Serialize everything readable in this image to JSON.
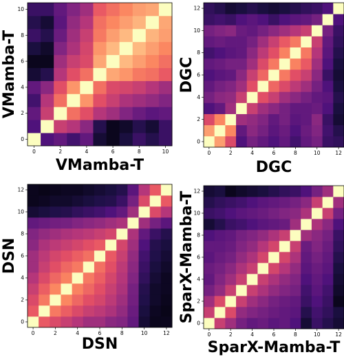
{
  "colormap": "magma",
  "chart_data": [
    {
      "type": "heatmap",
      "xlabel": "VMamba-T",
      "ylabel": "VMamba-T",
      "size": 11,
      "xticks": [
        "0",
        "2",
        "4",
        "6",
        "8",
        "10"
      ],
      "yticks": [
        "0",
        "2",
        "4",
        "6",
        "8",
        "10"
      ],
      "values": [
        [
          1.0,
          0.25,
          0.3,
          0.22,
          0.3,
          0.1,
          0.05,
          0.12,
          0.2,
          0.15,
          0.2
        ],
        [
          0.25,
          1.0,
          0.55,
          0.5,
          0.4,
          0.15,
          0.05,
          0.08,
          0.15,
          0.1,
          0.2
        ],
        [
          0.3,
          0.55,
          1.0,
          0.7,
          0.62,
          0.5,
          0.45,
          0.38,
          0.32,
          0.28,
          0.3
        ],
        [
          0.22,
          0.5,
          0.7,
          1.0,
          0.78,
          0.62,
          0.55,
          0.48,
          0.45,
          0.42,
          0.38
        ],
        [
          0.3,
          0.4,
          0.62,
          0.78,
          1.0,
          0.7,
          0.6,
          0.58,
          0.55,
          0.5,
          0.45
        ],
        [
          0.1,
          0.15,
          0.5,
          0.62,
          0.7,
          1.0,
          0.82,
          0.78,
          0.72,
          0.7,
          0.65
        ],
        [
          0.05,
          0.05,
          0.45,
          0.55,
          0.6,
          0.82,
          1.0,
          0.86,
          0.8,
          0.75,
          0.7
        ],
        [
          0.12,
          0.08,
          0.38,
          0.48,
          0.58,
          0.78,
          0.86,
          1.0,
          0.86,
          0.8,
          0.75
        ],
        [
          0.2,
          0.15,
          0.32,
          0.45,
          0.55,
          0.72,
          0.8,
          0.86,
          1.0,
          0.85,
          0.8
        ],
        [
          0.15,
          0.1,
          0.28,
          0.42,
          0.5,
          0.7,
          0.75,
          0.8,
          0.85,
          1.0,
          0.82
        ],
        [
          0.2,
          0.2,
          0.3,
          0.38,
          0.45,
          0.65,
          0.7,
          0.75,
          0.8,
          0.82,
          1.0
        ]
      ]
    },
    {
      "type": "heatmap",
      "xlabel": "DGC",
      "ylabel": "DGC",
      "size": 13,
      "xticks": [
        "0",
        "2",
        "4",
        "6",
        "8",
        "10",
        "12"
      ],
      "yticks": [
        "0",
        "2",
        "4",
        "6",
        "8",
        "10",
        "12"
      ],
      "values": [
        [
          1.0,
          0.8,
          0.6,
          0.25,
          0.35,
          0.3,
          0.25,
          0.3,
          0.22,
          0.3,
          0.35,
          0.2,
          0.18
        ],
        [
          0.8,
          1.0,
          0.75,
          0.3,
          0.4,
          0.35,
          0.28,
          0.32,
          0.25,
          0.32,
          0.38,
          0.22,
          0.15
        ],
        [
          0.6,
          0.75,
          1.0,
          0.45,
          0.42,
          0.38,
          0.3,
          0.35,
          0.28,
          0.3,
          0.4,
          0.2,
          0.1
        ],
        [
          0.25,
          0.3,
          0.45,
          1.0,
          0.55,
          0.45,
          0.4,
          0.35,
          0.3,
          0.3,
          0.32,
          0.25,
          0.12
        ],
        [
          0.35,
          0.4,
          0.42,
          0.55,
          1.0,
          0.62,
          0.55,
          0.45,
          0.4,
          0.35,
          0.3,
          0.28,
          0.15
        ],
        [
          0.3,
          0.35,
          0.38,
          0.45,
          0.62,
          1.0,
          0.68,
          0.6,
          0.52,
          0.45,
          0.35,
          0.25,
          0.12
        ],
        [
          0.25,
          0.28,
          0.3,
          0.4,
          0.55,
          0.68,
          1.0,
          0.72,
          0.62,
          0.55,
          0.4,
          0.2,
          0.1
        ],
        [
          0.3,
          0.32,
          0.35,
          0.35,
          0.45,
          0.6,
          0.72,
          1.0,
          0.74,
          0.65,
          0.45,
          0.25,
          0.12
        ],
        [
          0.22,
          0.25,
          0.28,
          0.3,
          0.4,
          0.52,
          0.62,
          0.74,
          1.0,
          0.72,
          0.5,
          0.28,
          0.15
        ],
        [
          0.3,
          0.32,
          0.3,
          0.3,
          0.35,
          0.45,
          0.55,
          0.65,
          0.72,
          1.0,
          0.55,
          0.3,
          0.18
        ],
        [
          0.35,
          0.38,
          0.4,
          0.32,
          0.3,
          0.35,
          0.4,
          0.45,
          0.5,
          0.55,
          1.0,
          0.35,
          0.2
        ],
        [
          0.2,
          0.22,
          0.2,
          0.25,
          0.28,
          0.25,
          0.2,
          0.25,
          0.28,
          0.3,
          0.35,
          1.0,
          0.25
        ],
        [
          0.18,
          0.15,
          0.1,
          0.12,
          0.15,
          0.12,
          0.1,
          0.12,
          0.15,
          0.18,
          0.2,
          0.25,
          1.0
        ]
      ]
    },
    {
      "type": "heatmap",
      "xlabel": "DSN",
      "ylabel": "DSN",
      "size": 13,
      "xticks": [
        "0",
        "2",
        "4",
        "6",
        "8",
        "10",
        "12"
      ],
      "yticks": [
        "0",
        "2",
        "4",
        "6",
        "8",
        "10",
        "12"
      ],
      "values": [
        [
          1.0,
          0.65,
          0.6,
          0.55,
          0.5,
          0.45,
          0.45,
          0.4,
          0.38,
          0.3,
          0.1,
          0.05,
          0.05
        ],
        [
          0.65,
          1.0,
          0.72,
          0.66,
          0.6,
          0.55,
          0.52,
          0.48,
          0.42,
          0.32,
          0.12,
          0.06,
          0.04
        ],
        [
          0.6,
          0.72,
          1.0,
          0.75,
          0.68,
          0.62,
          0.58,
          0.52,
          0.45,
          0.34,
          0.14,
          0.08,
          0.05
        ],
        [
          0.55,
          0.66,
          0.75,
          1.0,
          0.74,
          0.68,
          0.62,
          0.55,
          0.48,
          0.35,
          0.15,
          0.08,
          0.06
        ],
        [
          0.5,
          0.6,
          0.68,
          0.74,
          1.0,
          0.72,
          0.66,
          0.58,
          0.5,
          0.38,
          0.18,
          0.1,
          0.06
        ],
        [
          0.45,
          0.55,
          0.62,
          0.68,
          0.72,
          1.0,
          0.7,
          0.62,
          0.52,
          0.4,
          0.2,
          0.12,
          0.08
        ],
        [
          0.45,
          0.52,
          0.58,
          0.62,
          0.66,
          0.7,
          1.0,
          0.65,
          0.55,
          0.42,
          0.22,
          0.14,
          0.1
        ],
        [
          0.4,
          0.48,
          0.52,
          0.55,
          0.58,
          0.62,
          0.65,
          1.0,
          0.58,
          0.45,
          0.25,
          0.15,
          0.12
        ],
        [
          0.38,
          0.42,
          0.45,
          0.48,
          0.5,
          0.52,
          0.55,
          0.58,
          1.0,
          0.48,
          0.3,
          0.2,
          0.15
        ],
        [
          0.3,
          0.32,
          0.34,
          0.35,
          0.38,
          0.4,
          0.42,
          0.45,
          0.48,
          1.0,
          0.45,
          0.35,
          0.28
        ],
        [
          0.1,
          0.12,
          0.14,
          0.15,
          0.18,
          0.2,
          0.22,
          0.25,
          0.3,
          0.45,
          1.0,
          0.6,
          0.5
        ],
        [
          0.05,
          0.06,
          0.08,
          0.08,
          0.1,
          0.12,
          0.14,
          0.15,
          0.2,
          0.35,
          0.6,
          1.0,
          0.65
        ],
        [
          0.05,
          0.04,
          0.05,
          0.06,
          0.06,
          0.08,
          0.1,
          0.12,
          0.15,
          0.28,
          0.5,
          0.65,
          1.0
        ]
      ]
    },
    {
      "type": "heatmap",
      "xlabel": "SparX-Mamba-T",
      "ylabel": "SparX-Mamba-T",
      "size": 13,
      "xticks": [
        "0",
        "2",
        "4",
        "6",
        "8",
        "10",
        "12"
      ],
      "yticks": [
        "0",
        "2",
        "4",
        "6",
        "8",
        "10",
        "12"
      ],
      "values": [
        [
          1.0,
          0.55,
          0.45,
          0.35,
          0.3,
          0.32,
          0.28,
          0.3,
          0.25,
          0.1,
          0.2,
          0.15,
          0.1
        ],
        [
          0.55,
          1.0,
          0.6,
          0.42,
          0.38,
          0.35,
          0.32,
          0.3,
          0.28,
          0.15,
          0.22,
          0.18,
          0.12
        ],
        [
          0.45,
          0.6,
          1.0,
          0.55,
          0.45,
          0.4,
          0.35,
          0.32,
          0.3,
          0.2,
          0.25,
          0.2,
          0.05
        ],
        [
          0.35,
          0.42,
          0.55,
          1.0,
          0.55,
          0.48,
          0.42,
          0.38,
          0.35,
          0.22,
          0.28,
          0.22,
          0.08
        ],
        [
          0.3,
          0.38,
          0.45,
          0.55,
          1.0,
          0.55,
          0.48,
          0.42,
          0.38,
          0.25,
          0.3,
          0.25,
          0.1
        ],
        [
          0.32,
          0.35,
          0.4,
          0.48,
          0.55,
          1.0,
          0.58,
          0.5,
          0.42,
          0.28,
          0.32,
          0.28,
          0.12
        ],
        [
          0.28,
          0.32,
          0.35,
          0.42,
          0.48,
          0.58,
          1.0,
          0.58,
          0.48,
          0.3,
          0.35,
          0.3,
          0.15
        ],
        [
          0.3,
          0.3,
          0.32,
          0.38,
          0.42,
          0.5,
          0.58,
          1.0,
          0.55,
          0.32,
          0.38,
          0.32,
          0.18
        ],
        [
          0.25,
          0.28,
          0.3,
          0.35,
          0.38,
          0.42,
          0.48,
          0.55,
          1.0,
          0.45,
          0.4,
          0.35,
          0.2
        ],
        [
          0.1,
          0.15,
          0.2,
          0.22,
          0.25,
          0.28,
          0.3,
          0.32,
          0.45,
          1.0,
          0.48,
          0.4,
          0.25
        ],
        [
          0.2,
          0.22,
          0.25,
          0.28,
          0.3,
          0.32,
          0.35,
          0.38,
          0.4,
          0.48,
          1.0,
          0.55,
          0.35
        ],
        [
          0.15,
          0.18,
          0.2,
          0.22,
          0.25,
          0.28,
          0.3,
          0.32,
          0.35,
          0.4,
          0.55,
          1.0,
          0.45
        ],
        [
          0.1,
          0.12,
          0.05,
          0.08,
          0.1,
          0.12,
          0.15,
          0.18,
          0.2,
          0.25,
          0.35,
          0.45,
          1.0
        ]
      ]
    }
  ]
}
